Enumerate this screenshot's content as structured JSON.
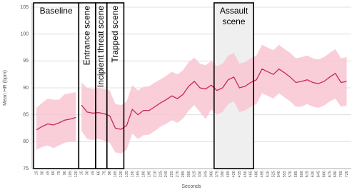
{
  "chart_data": {
    "type": "line",
    "y_label": "Mean HR (bpm)",
    "x_label": "Seconds",
    "categories": [
      "15",
      "30",
      "45",
      "60",
      "75",
      "90",
      "105",
      "120",
      "15",
      "30",
      "45",
      "60",
      "75",
      "90",
      "105",
      "120",
      "135",
      "150",
      "165",
      "180",
      "195",
      "210",
      "225",
      "240",
      "255",
      "270",
      "285",
      "300",
      "315",
      "330",
      "345",
      "360",
      "375",
      "390",
      "405",
      "420",
      "435",
      "450",
      "465",
      "480",
      "495",
      "510",
      "525",
      "540",
      "555",
      "570",
      "585",
      "600",
      "615",
      "630",
      "645",
      "660",
      "675",
      "690",
      "705",
      "720"
    ],
    "series": [
      {
        "color": "#c8285a",
        "band_color": "#f8c6d2",
        "values": [
          82.2,
          82.8,
          83.3,
          83.1,
          83.5,
          84.0,
          84.2,
          84.5,
          null,
          null,
          null,
          null,
          null,
          null,
          null,
          null,
          null,
          null,
          null,
          null,
          null,
          null,
          null,
          null,
          null,
          null,
          null,
          null,
          null,
          null,
          null,
          null,
          null,
          null,
          null,
          null,
          null,
          null,
          null,
          null,
          null,
          null,
          null,
          null,
          null,
          null,
          null,
          null,
          null,
          null,
          null,
          null,
          null,
          null,
          null,
          null
        ],
        "lower": [
          78.5,
          79.0,
          79.3,
          78.8,
          79.3,
          79.8,
          80.0,
          80.0,
          null,
          null,
          null,
          null,
          null,
          null,
          null,
          null,
          null,
          null,
          null,
          null,
          null,
          null,
          null,
          null,
          null,
          null,
          null,
          null,
          null,
          null,
          null,
          null,
          null,
          null,
          null,
          null,
          null,
          null,
          null,
          null,
          null,
          null,
          null,
          null,
          null,
          null,
          null,
          null,
          null,
          null,
          null,
          null,
          null,
          null,
          null,
          null
        ],
        "upper": [
          86.3,
          87.2,
          88.0,
          87.8,
          87.8,
          88.8,
          89.0,
          89.2,
          null,
          null,
          null,
          null,
          null,
          null,
          null,
          null,
          null,
          null,
          null,
          null,
          null,
          null,
          null,
          null,
          null,
          null,
          null,
          null,
          null,
          null,
          null,
          null,
          null,
          null,
          null,
          null,
          null,
          null,
          null,
          null,
          null,
          null,
          null,
          null,
          null,
          null,
          null,
          null,
          null,
          null,
          null,
          null,
          null,
          null,
          null,
          null
        ]
      },
      {
        "color": "#c8285a",
        "band_color": "#f8c6d2",
        "values": [
          null,
          null,
          null,
          null,
          null,
          null,
          null,
          null,
          86.8,
          85.5,
          85.3,
          85.4,
          85.2,
          84.8,
          82.5,
          82.3,
          83.0,
          86.0,
          85.0,
          85.8,
          85.8,
          86.5,
          87.2,
          87.8,
          88.5,
          88.0,
          88.8,
          90.3,
          91.2,
          90.0,
          89.8,
          90.5,
          89.5,
          90.0,
          91.5,
          92.0,
          90.0,
          90.3,
          91.0,
          91.5,
          93.5,
          93.0,
          92.5,
          93.5,
          92.8,
          92.0,
          91.0,
          91.2,
          91.5,
          91.0,
          90.8,
          91.2,
          92.0,
          92.7,
          91.0,
          91.2
        ],
        "lower": [
          null,
          null,
          null,
          null,
          null,
          null,
          null,
          null,
          82.0,
          80.5,
          80.3,
          80.5,
          80.2,
          79.8,
          78.0,
          77.8,
          78.5,
          81.5,
          80.5,
          81.2,
          81.3,
          82.0,
          82.8,
          83.3,
          84.0,
          83.5,
          84.3,
          85.8,
          86.8,
          85.5,
          84.2,
          86.0,
          85.0,
          85.5,
          87.0,
          87.5,
          85.5,
          85.8,
          86.5,
          87.0,
          89.0,
          88.5,
          88.0,
          89.0,
          88.2,
          87.5,
          86.5,
          86.5,
          87.0,
          86.5,
          86.3,
          86.7,
          87.5,
          88.0,
          86.5,
          86.7
        ],
        "upper": [
          null,
          null,
          null,
          null,
          null,
          null,
          null,
          null,
          91.0,
          90.0,
          89.8,
          90.0,
          89.8,
          89.5,
          87.0,
          86.8,
          87.5,
          90.5,
          89.5,
          90.2,
          90.3,
          91.0,
          91.6,
          92.2,
          93.0,
          92.5,
          93.3,
          94.8,
          95.6,
          94.5,
          94.2,
          95.0,
          94.0,
          94.5,
          96.0,
          96.5,
          94.5,
          94.8,
          95.5,
          96.0,
          98.0,
          97.5,
          97.0,
          98.0,
          97.2,
          96.5,
          95.5,
          95.7,
          96.0,
          95.5,
          95.3,
          95.7,
          96.5,
          97.2,
          95.5,
          95.7
        ]
      }
    ],
    "ylim": [
      75,
      105
    ],
    "yticks": [
      75,
      80,
      85,
      90,
      95,
      100,
      105
    ],
    "grid": true,
    "annotations": [
      {
        "lines": [
          "Baseline"
        ]
      },
      {
        "lines": [
          "Entrance scene"
        ]
      },
      {
        "lines": [
          "Incipient threat scene"
        ]
      },
      {
        "lines": [
          "Trapped scene"
        ]
      },
      {
        "lines": [
          "Assault",
          "scene"
        ]
      }
    ]
  }
}
